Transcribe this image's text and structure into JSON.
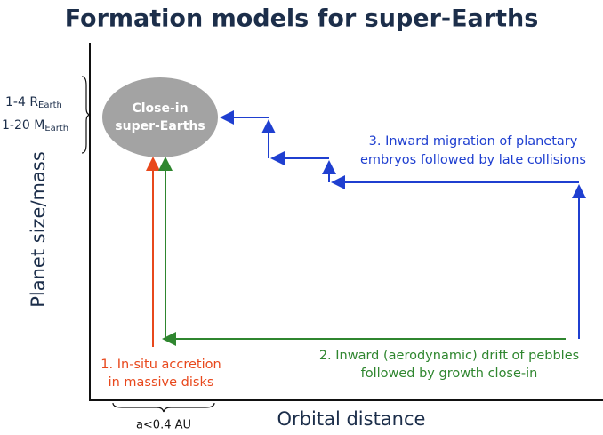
{
  "title": "Formation models for super-Earths",
  "y_axis_label": "Planet size/mass",
  "x_axis_label": "Orbital distance",
  "size_range": {
    "main": "1-4 R",
    "sub": "Earth"
  },
  "mass_range": {
    "main": "1-20 M",
    "sub": "Earth"
  },
  "distance_range": "a<0.4 AU",
  "target": {
    "lines": [
      "Close-in",
      "super-Earths"
    ]
  },
  "models": [
    {
      "lines": [
        "1. In-situ accretion",
        "in massive disks"
      ]
    },
    {
      "lines": [
        "2. Inward (aerodynamic) drift of pebbles",
        "followed by growth close-in"
      ]
    },
    {
      "lines": [
        "3. Inward migration of planetary",
        "embryos followed by late collisions"
      ]
    }
  ]
}
